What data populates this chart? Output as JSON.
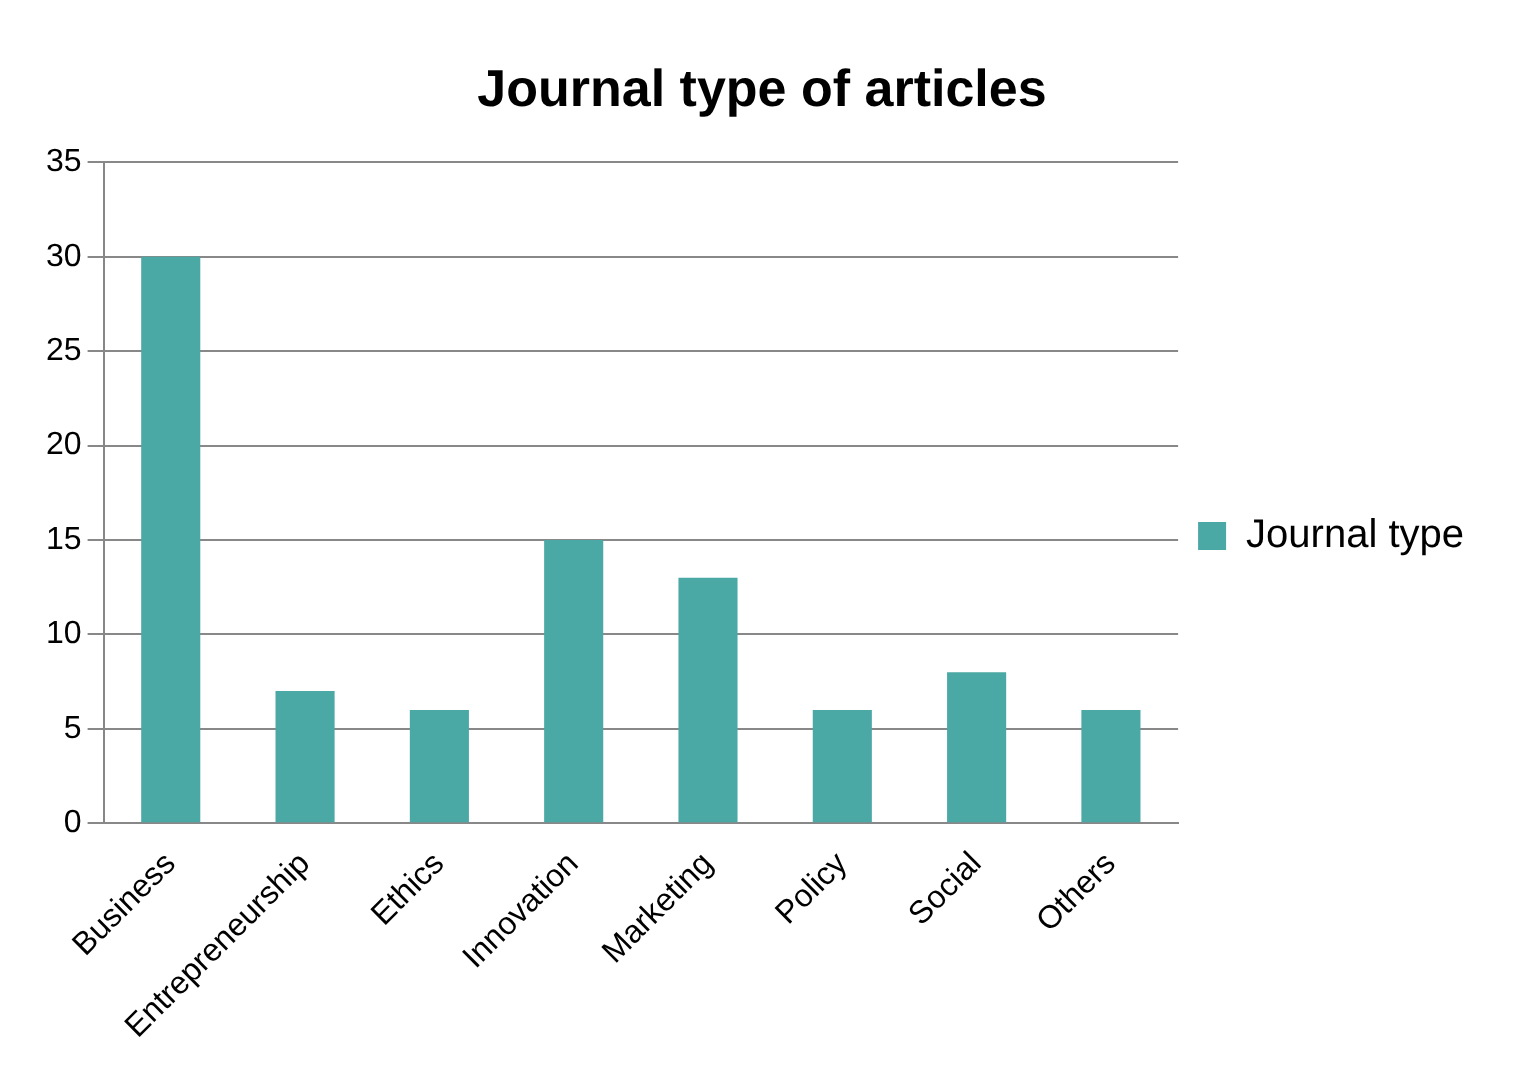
{
  "chart_data": {
    "type": "bar",
    "title": "Journal type of articles",
    "categories": [
      "Business",
      "Entrepreneurship",
      "Ethics",
      "Innovation",
      "Marketing",
      "Policy",
      "Social",
      "Others"
    ],
    "series": [
      {
        "name": "Journal type",
        "color": "#4aa8a5",
        "values": [
          30,
          7,
          6,
          15,
          13,
          6,
          8,
          6
        ]
      }
    ],
    "ylim": [
      0,
      35
    ],
    "yticks": [
      0,
      5,
      10,
      15,
      20,
      25,
      30,
      35
    ],
    "grid": "y",
    "legend": "right"
  }
}
